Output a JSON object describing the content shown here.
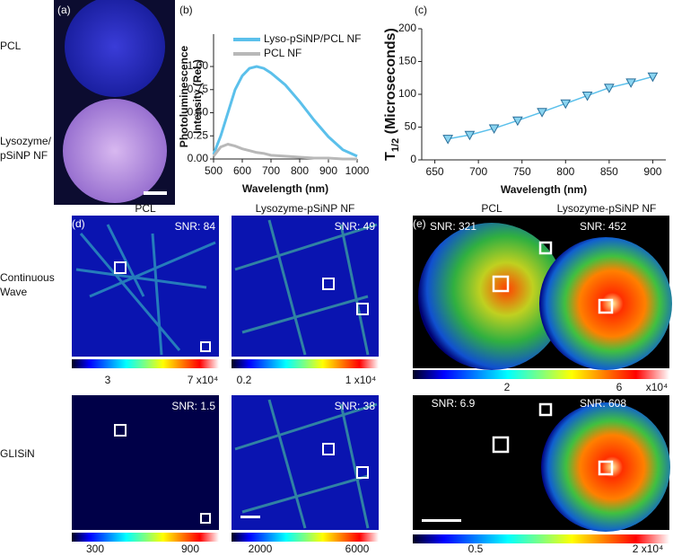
{
  "panel_a": {
    "label": "(a)",
    "row_labels": [
      "PCL",
      "Lysozyme/",
      "pSiNP NF"
    ]
  },
  "chart_data": [
    {
      "type": "line",
      "label": "(b)",
      "x_label": "Wavelength (nm)",
      "y_label": [
        "Photoluminescence",
        "Intensity (Rel.)"
      ],
      "x": [
        500,
        525,
        550,
        575,
        600,
        625,
        650,
        675,
        700,
        750,
        800,
        850,
        900,
        950,
        1000
      ],
      "series": [
        {
          "name": "Lyso-pSiNP/PCL NF",
          "color": "#5bc0eb",
          "values": [
            0.05,
            0.25,
            0.5,
            0.75,
            0.9,
            0.98,
            1.0,
            0.98,
            0.93,
            0.8,
            0.62,
            0.42,
            0.24,
            0.1,
            0.03
          ]
        },
        {
          "name": "PCL NF",
          "color": "#b8b8b8",
          "values": [
            0.03,
            0.13,
            0.16,
            0.14,
            0.11,
            0.09,
            0.07,
            0.06,
            0.04,
            0.03,
            0.02,
            0.01,
            0.01,
            0.0,
            0.0
          ]
        }
      ],
      "xlim": [
        500,
        1000
      ],
      "xticks": [
        500,
        600,
        700,
        800,
        900,
        1000
      ],
      "ylim": [
        0,
        1.35
      ],
      "yticks": [
        {
          "value": 0,
          "label": "0.00"
        },
        {
          "value": 0.25,
          "label": "0.25"
        },
        {
          "value": 0.5,
          "label": "0.50"
        },
        {
          "value": 0.75,
          "label": "0.75"
        },
        {
          "value": 1,
          "label": "1.00"
        }
      ],
      "legend": "upper-left"
    },
    {
      "type": "line",
      "label": "(c)",
      "x_label": "Wavelength (nm)",
      "y_label": [
        "T",
        "1/2",
        " (Microseconds)"
      ],
      "x": [
        665,
        690,
        718,
        745,
        773,
        800,
        825,
        850,
        875,
        900
      ],
      "values": [
        32,
        38,
        48,
        60,
        73,
        86,
        98,
        110,
        118,
        127
      ],
      "color": "#5bc0eb",
      "marker": "triangle-down",
      "xlim": [
        635,
        915
      ],
      "xticks": [
        650,
        700,
        750,
        800,
        850,
        900
      ],
      "ylim": [
        0,
        200
      ],
      "yticks": [
        0,
        50,
        100,
        150,
        200
      ]
    }
  ],
  "panel_d": {
    "label": "(d)",
    "columns": [
      "PCL",
      "Lysozyme-pSiNP NF"
    ],
    "rows": [
      [
        "Continuous",
        "Wave"
      ],
      [
        "GLISiN"
      ]
    ],
    "snr": [
      "SNR: 84",
      "SNR: 49",
      "SNR: 1.5",
      "SNR: 38"
    ],
    "colorbar_labels": [
      [
        "3",
        "7 x10⁴"
      ],
      [
        "0.2",
        "1 x10⁴"
      ],
      [
        "300",
        "900"
      ],
      [
        "2000",
        "6000"
      ]
    ]
  },
  "panel_e": {
    "label": "(e)",
    "columns": [
      "PCL",
      "Lysozyme-pSiNP NF"
    ],
    "snr": [
      "SNR: 321",
      "SNR: 452",
      "SNR: 6.9",
      "SNR: 608"
    ],
    "colorbar_labels": [
      [
        "2",
        "6",
        "x10⁴"
      ],
      [
        "0.5",
        "2 x10⁴"
      ]
    ]
  }
}
